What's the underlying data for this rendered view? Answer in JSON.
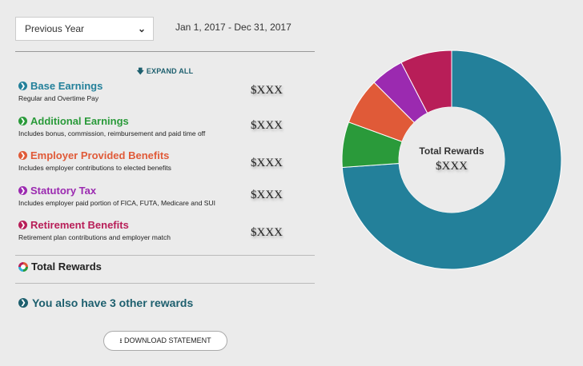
{
  "filter": {
    "selected": "Previous Year",
    "date_range": "Jan 1, 2017 - Dec 31, 2017"
  },
  "expand_all": "EXPAND ALL",
  "items": [
    {
      "title": "Base Earnings",
      "desc": "Regular and Overtime Pay",
      "amount": "$XXX",
      "color": "#23809a"
    },
    {
      "title": "Additional Earnings",
      "desc": "Includes bonus, commission, reimbursement and paid time off",
      "amount": "$XXX",
      "color": "#2a9a3a"
    },
    {
      "title": "Employer Provided Benefits",
      "desc": "Includes employer contributions to elected benefits",
      "amount": "$XXX",
      "color": "#e05a38"
    },
    {
      "title": "Statutory Tax",
      "desc": "Includes employer paid portion of FICA, FUTA, Medicare and SUI",
      "amount": "$XXX",
      "color": "#9b2ab0"
    },
    {
      "title": "Retirement Benefits",
      "desc": "Retirement plan contributions and employer match",
      "amount": "$XXX",
      "color": "#b81e58"
    }
  ],
  "total": {
    "label": "Total Rewards"
  },
  "other_rewards": "You also have 3 other rewards",
  "download": "DOWNLOAD STATEMENT",
  "chart_data": {
    "type": "pie",
    "variant": "donut",
    "categories": [
      "Base Earnings",
      "Additional Earnings",
      "Employer Provided Benefits",
      "Statutory Tax",
      "Retirement Benefits"
    ],
    "values": [
      73.9,
      6.7,
      6.9,
      4.9,
      7.6
    ],
    "unit": "percent (estimated)",
    "colors": [
      "#23809a",
      "#2a9a3a",
      "#e05a38",
      "#9b2ab0",
      "#b81e58"
    ],
    "center_label": "Total Rewards",
    "center_value": "$XXX"
  }
}
